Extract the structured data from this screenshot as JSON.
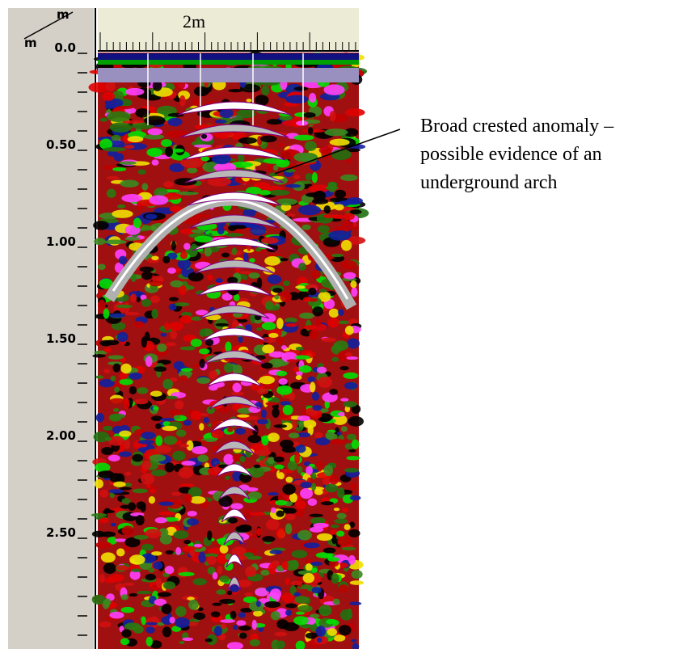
{
  "corner": {
    "x_unit": "m",
    "y_unit": "m"
  },
  "x_ruler": {
    "label": "2m"
  },
  "depth_labels": [
    "0.0",
    "0.50",
    "1.00",
    "1.50",
    "2.00",
    "2.50"
  ],
  "annotation": {
    "lines": [
      "Broad crested anomaly –",
      "possible evidence of an",
      "underground arch"
    ]
  }
}
